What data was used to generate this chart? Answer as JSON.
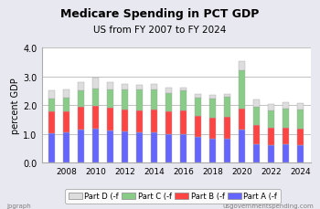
{
  "title": "Medicare Spending in PCT GDP",
  "subtitle": "US from FY 2007 to FY 2024",
  "ylabel": "percent GDP",
  "xlabel_note_left": "jpgraph",
  "xlabel_note_right": "usgovernmentspending.com",
  "years": [
    2007,
    2008,
    2009,
    2010,
    2011,
    2012,
    2013,
    2014,
    2015,
    2016,
    2017,
    2018,
    2019,
    2020,
    2021,
    2022,
    2023,
    2024
  ],
  "part_A": [
    1.02,
    1.05,
    1.15,
    1.18,
    1.12,
    1.08,
    1.05,
    1.05,
    1.0,
    1.0,
    0.9,
    0.85,
    0.85,
    1.15,
    0.65,
    0.6,
    0.63,
    0.6
  ],
  "part_B": [
    0.75,
    0.72,
    0.8,
    0.78,
    0.78,
    0.78,
    0.78,
    0.8,
    0.78,
    0.8,
    0.72,
    0.72,
    0.75,
    0.72,
    0.65,
    0.6,
    0.6,
    0.58
  ],
  "part_C": [
    0.45,
    0.48,
    0.55,
    0.6,
    0.65,
    0.68,
    0.7,
    0.68,
    0.65,
    0.7,
    0.65,
    0.65,
    0.68,
    1.35,
    0.65,
    0.6,
    0.65,
    0.68
  ],
  "part_D": [
    0.3,
    0.28,
    0.3,
    0.38,
    0.25,
    0.18,
    0.18,
    0.2,
    0.18,
    0.12,
    0.13,
    0.13,
    0.12,
    0.3,
    0.25,
    0.25,
    0.23,
    0.2
  ],
  "color_A": "#6666ff",
  "color_B": "#ff4444",
  "color_C": "#88cc88",
  "color_D": "#dddddd",
  "ylim": [
    0.0,
    4.0
  ],
  "yticks": [
    0.0,
    1.0,
    2.0,
    3.0,
    4.0
  ],
  "background_color": "#e8e8f0",
  "plot_bg": "#ffffff",
  "bar_width": 0.42,
  "legend_labels": [
    "Part D (-f",
    "Part C (-f",
    "Part B (-f",
    "Part A (-f"
  ]
}
